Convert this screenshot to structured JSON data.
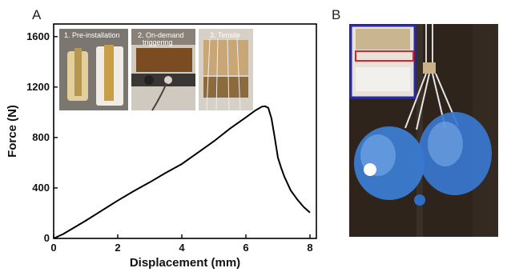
{
  "panels": {
    "a_label": "A",
    "b_label": "B"
  },
  "insets": [
    {
      "caption_lines": [
        "1. Pre-installation"
      ]
    },
    {
      "caption_lines": [
        "2. On-demand",
        "triggering"
      ]
    },
    {
      "caption_lines": [
        "3. Tensile"
      ]
    }
  ],
  "chart_data": {
    "type": "line",
    "title": "",
    "xlabel": "Displacement (mm)",
    "ylabel": "Force (N)",
    "xlim": [
      0,
      8.2
    ],
    "ylim": [
      0,
      1700
    ],
    "xticks": [
      0,
      2,
      4,
      6,
      8
    ],
    "yticks": [
      0,
      400,
      800,
      1200,
      1600
    ],
    "grid": false,
    "series": [
      {
        "color": "#000000",
        "x": [
          0,
          0.3,
          0.6,
          1.0,
          1.5,
          2.0,
          2.5,
          3.0,
          3.5,
          4.0,
          4.5,
          5.0,
          5.5,
          6.0,
          6.3,
          6.5,
          6.6,
          6.7,
          6.8,
          6.9,
          7.0,
          7.1,
          7.2,
          7.4,
          7.6,
          7.8,
          8.0
        ],
        "y": [
          0,
          35,
          80,
          140,
          220,
          300,
          375,
          445,
          520,
          590,
          680,
          770,
          870,
          960,
          1015,
          1045,
          1048,
          1035,
          950,
          800,
          640,
          560,
          490,
          380,
          310,
          250,
          205
        ]
      }
    ]
  },
  "colors": {
    "line": "#000000",
    "photo_frame_blue": "#2a2ab0",
    "highlight_red": "#e0202a",
    "bottle_blue": "#3d7fd6",
    "dark_background": "#2e241c"
  }
}
